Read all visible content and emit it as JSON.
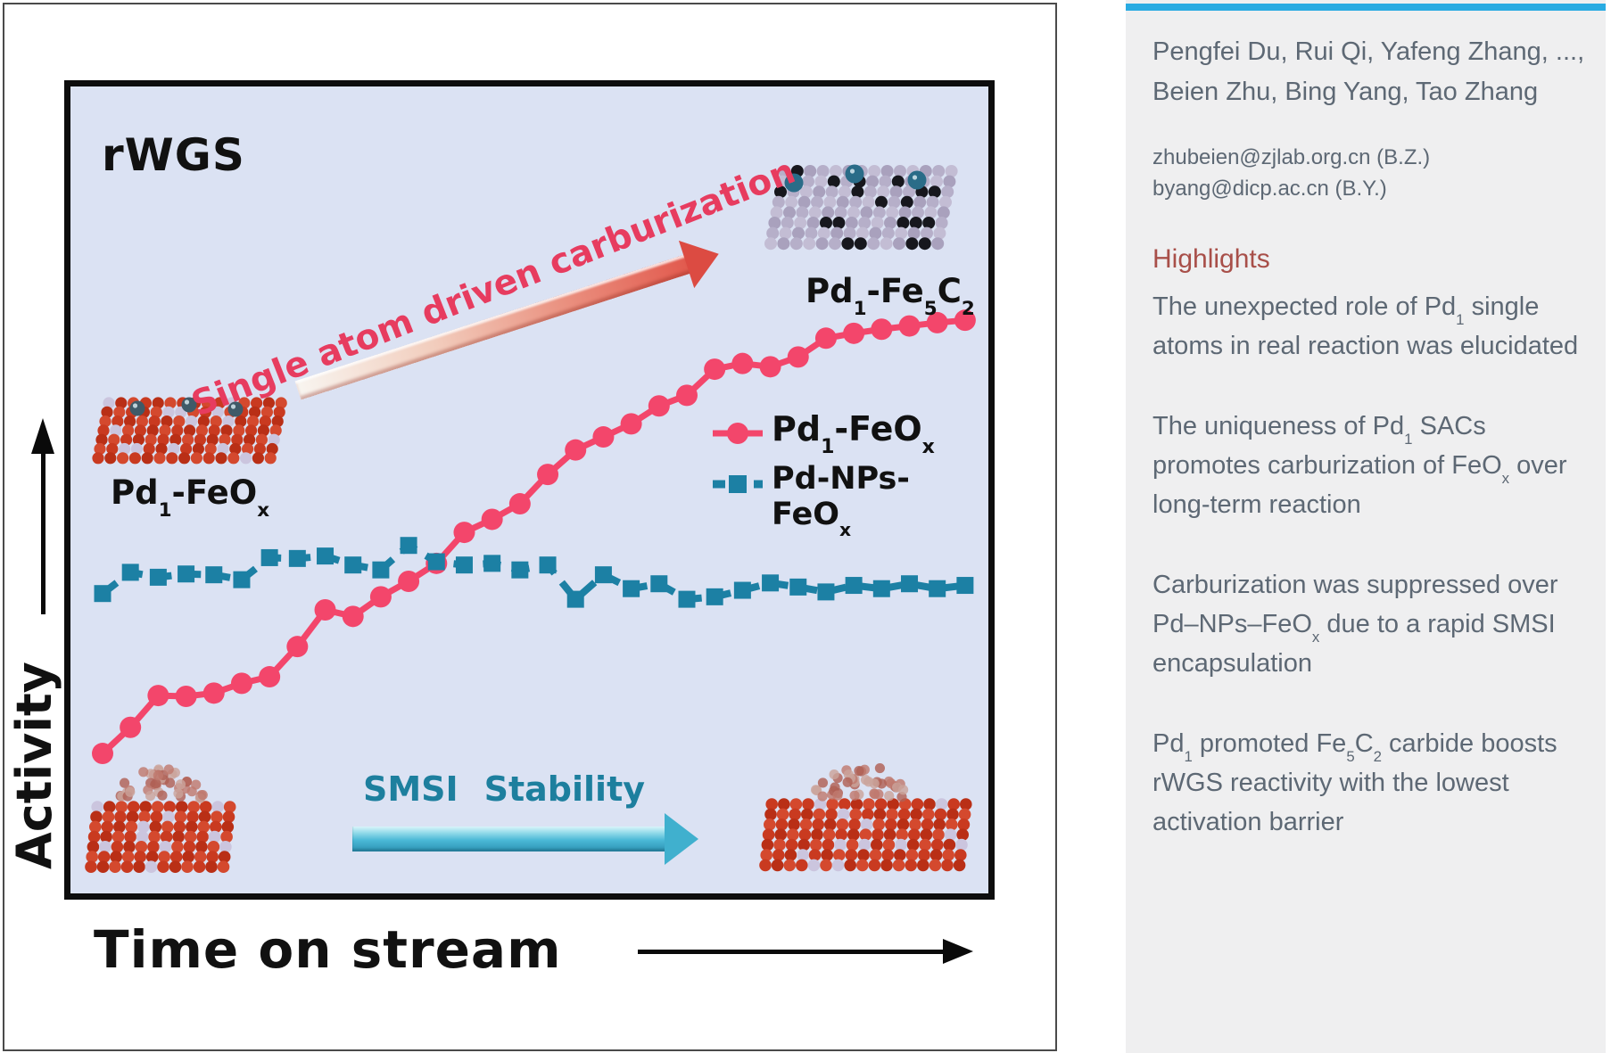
{
  "left_panel": {
    "chart_title": "rWGS",
    "annotation": "Single atom driven carburization",
    "smsi": [
      "SMSI",
      "Stability"
    ],
    "axis": {
      "y": "Activity",
      "x": "Time on stream"
    },
    "labels": {
      "pd1feox": [
        [
          "t",
          "Pd"
        ],
        [
          "s",
          "1"
        ],
        [
          "t",
          "-FeO"
        ],
        [
          "s",
          "x"
        ]
      ],
      "pd1fe5c2": [
        [
          "t",
          "Pd"
        ],
        [
          "s",
          "1"
        ],
        [
          "t",
          "-Fe"
        ],
        [
          "s",
          "5"
        ],
        [
          "t",
          "C"
        ],
        [
          "s",
          "2"
        ]
      ],
      "legend1": [
        [
          "t",
          "Pd"
        ],
        [
          "s",
          "1"
        ],
        [
          "t",
          "-FeO"
        ],
        [
          "s",
          "x"
        ]
      ],
      "legend2": [
        [
          "t",
          "Pd-NPs-FeO"
        ],
        [
          "s",
          "x"
        ]
      ]
    }
  },
  "right_panel": {
    "accent_color": "#29abe2",
    "highlight_title_color": "#a84f49",
    "authors": "Pengfei Du, Rui Qi, Yafeng Zhang, ..., Beien Zhu, Bing Yang, Tao Zhang",
    "emails": [
      "zhubeien@zjlab.org.cn (B.Z.)",
      "byang@dicp.ac.cn (B.Y.)"
    ],
    "highlights_title": "Highlights",
    "highlights": [
      [
        [
          "t",
          "The unexpected role of Pd"
        ],
        [
          "s",
          "1"
        ],
        [
          "t",
          " single atoms in real reaction was elucidated"
        ]
      ],
      [
        [
          "t",
          "The uniqueness of Pd"
        ],
        [
          "s",
          "1"
        ],
        [
          "t",
          " SACs promotes carburization of FeO"
        ],
        [
          "s",
          "x"
        ],
        [
          "t",
          " over long-term reaction"
        ]
      ],
      [
        [
          "t",
          "Carburization was suppressed over Pd–NPs–FeO"
        ],
        [
          "s",
          "x"
        ],
        [
          "t",
          " due to a rapid SMSI encapsulation"
        ]
      ],
      [
        [
          "t",
          "Pd"
        ],
        [
          "s",
          "1"
        ],
        [
          "t",
          " promoted Fe"
        ],
        [
          "s",
          "5"
        ],
        [
          "t",
          "C"
        ],
        [
          "s",
          "2"
        ],
        [
          "t",
          " carbide boosts rWGS reactivity with the lowest activation barrier"
        ]
      ]
    ]
  },
  "chart_data": {
    "type": "line",
    "title": "rWGS",
    "xlabel": "Time on stream",
    "ylabel": "Activity",
    "axes_numeric_labels": false,
    "grid": false,
    "legend_position": "center-right inside plot",
    "ylim": [
      0,
      100
    ],
    "x": [
      1,
      2,
      3,
      4,
      5,
      6,
      7,
      8,
      9,
      10,
      11,
      12,
      13,
      14,
      15,
      16,
      17,
      18,
      19,
      20,
      21,
      22,
      23,
      24,
      25,
      26,
      27,
      28,
      29,
      30,
      31,
      32
    ],
    "series": [
      {
        "name": "Pd1-FeOx",
        "color": "#f3466b",
        "marker": "circle",
        "dashed": false,
        "values": [
          17.7,
          20.9,
          24.8,
          24.7,
          25.1,
          26.3,
          27.1,
          30.8,
          35.3,
          34.5,
          36.9,
          38.8,
          41.0,
          44.8,
          46.4,
          48.3,
          51.9,
          54.9,
          56.5,
          58.1,
          60.3,
          61.6,
          64.8,
          65.5,
          65.1,
          66.3,
          68.6,
          69.2,
          69.7,
          70.1,
          70.5,
          70.8
        ]
      },
      {
        "name": "Pd-NPs-FeOx",
        "color": "#1c80a4",
        "marker": "square",
        "dashed": true,
        "values": [
          37.3,
          39.9,
          39.3,
          39.7,
          39.6,
          39.0,
          41.7,
          41.6,
          41.9,
          40.8,
          40.2,
          43.2,
          41.2,
          40.8,
          41.0,
          40.2,
          40.8,
          36.6,
          39.6,
          37.9,
          38.5,
          36.6,
          36.9,
          37.7,
          38.6,
          38.1,
          37.5,
          38.3,
          37.9,
          38.5,
          37.9,
          38.3
        ]
      }
    ],
    "annotations": [
      "Single atom driven carburization",
      "SMSI  Stability"
    ]
  }
}
